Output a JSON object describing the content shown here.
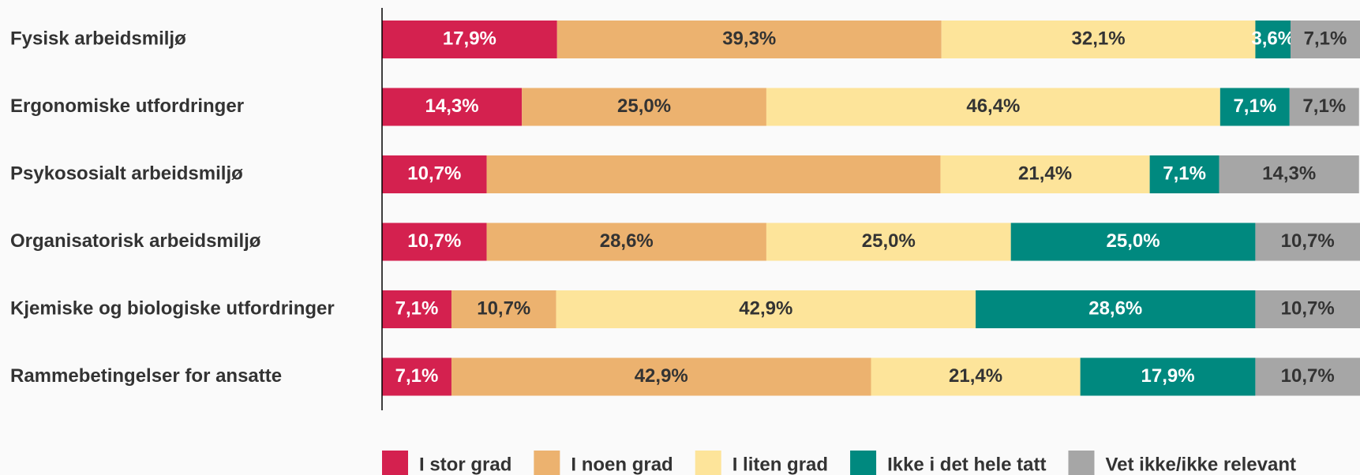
{
  "chart_data": {
    "type": "stacked_bar_horizontal",
    "categories": [
      "Fysisk arbeidsmiljø",
      "Ergonomiske utfordringer",
      "Psykososialt arbeidsmiljø",
      "Organisatorisk arbeidsmiljø",
      "Kjemiske og biologiske utfordringer",
      "Rammebetingelser for ansatte"
    ],
    "xlim": [
      0,
      100
    ],
    "legend": "bottom",
    "series": [
      {
        "name": "I stor grad",
        "color": "#d4214f",
        "values": [
          17.9,
          14.3,
          10.7,
          10.7,
          7.1,
          7.1
        ],
        "value_labels": [
          "17,9%",
          "14,3%",
          "10,7%",
          "10,7%",
          "7,1%",
          "7,1%"
        ]
      },
      {
        "name": "I noen grad",
        "color": "#ecb26f",
        "values": [
          39.3,
          25.0,
          46.4,
          28.6,
          10.7,
          42.9
        ],
        "value_labels": [
          "39,3%",
          "25,0%",
          null,
          "28,6%",
          "10,7%",
          "42,9%"
        ]
      },
      {
        "name": "I liten grad",
        "color": "#fde49a",
        "values": [
          32.1,
          46.4,
          21.4,
          25.0,
          42.9,
          21.4
        ],
        "value_labels": [
          "32,1%",
          "46,4%",
          "21,4%",
          "25,0%",
          "42,9%",
          "21,4%"
        ]
      },
      {
        "name": "Ikke i det hele tatt",
        "color": "#00897f",
        "values": [
          3.6,
          7.1,
          7.1,
          25.0,
          28.6,
          17.9
        ],
        "value_labels": [
          "3,6%",
          "7,1%",
          "7,1%",
          "25,0%",
          "28,6%",
          "17,9%"
        ]
      },
      {
        "name": "Vet ikke/ikke relevant",
        "color": "#a6a6a6",
        "values": [
          7.1,
          7.1,
          14.3,
          10.7,
          10.7,
          10.7
        ],
        "value_labels": [
          "7,1%",
          "7,1%",
          "14,3%",
          "10,7%",
          "10,7%",
          "10,7%"
        ]
      }
    ]
  }
}
